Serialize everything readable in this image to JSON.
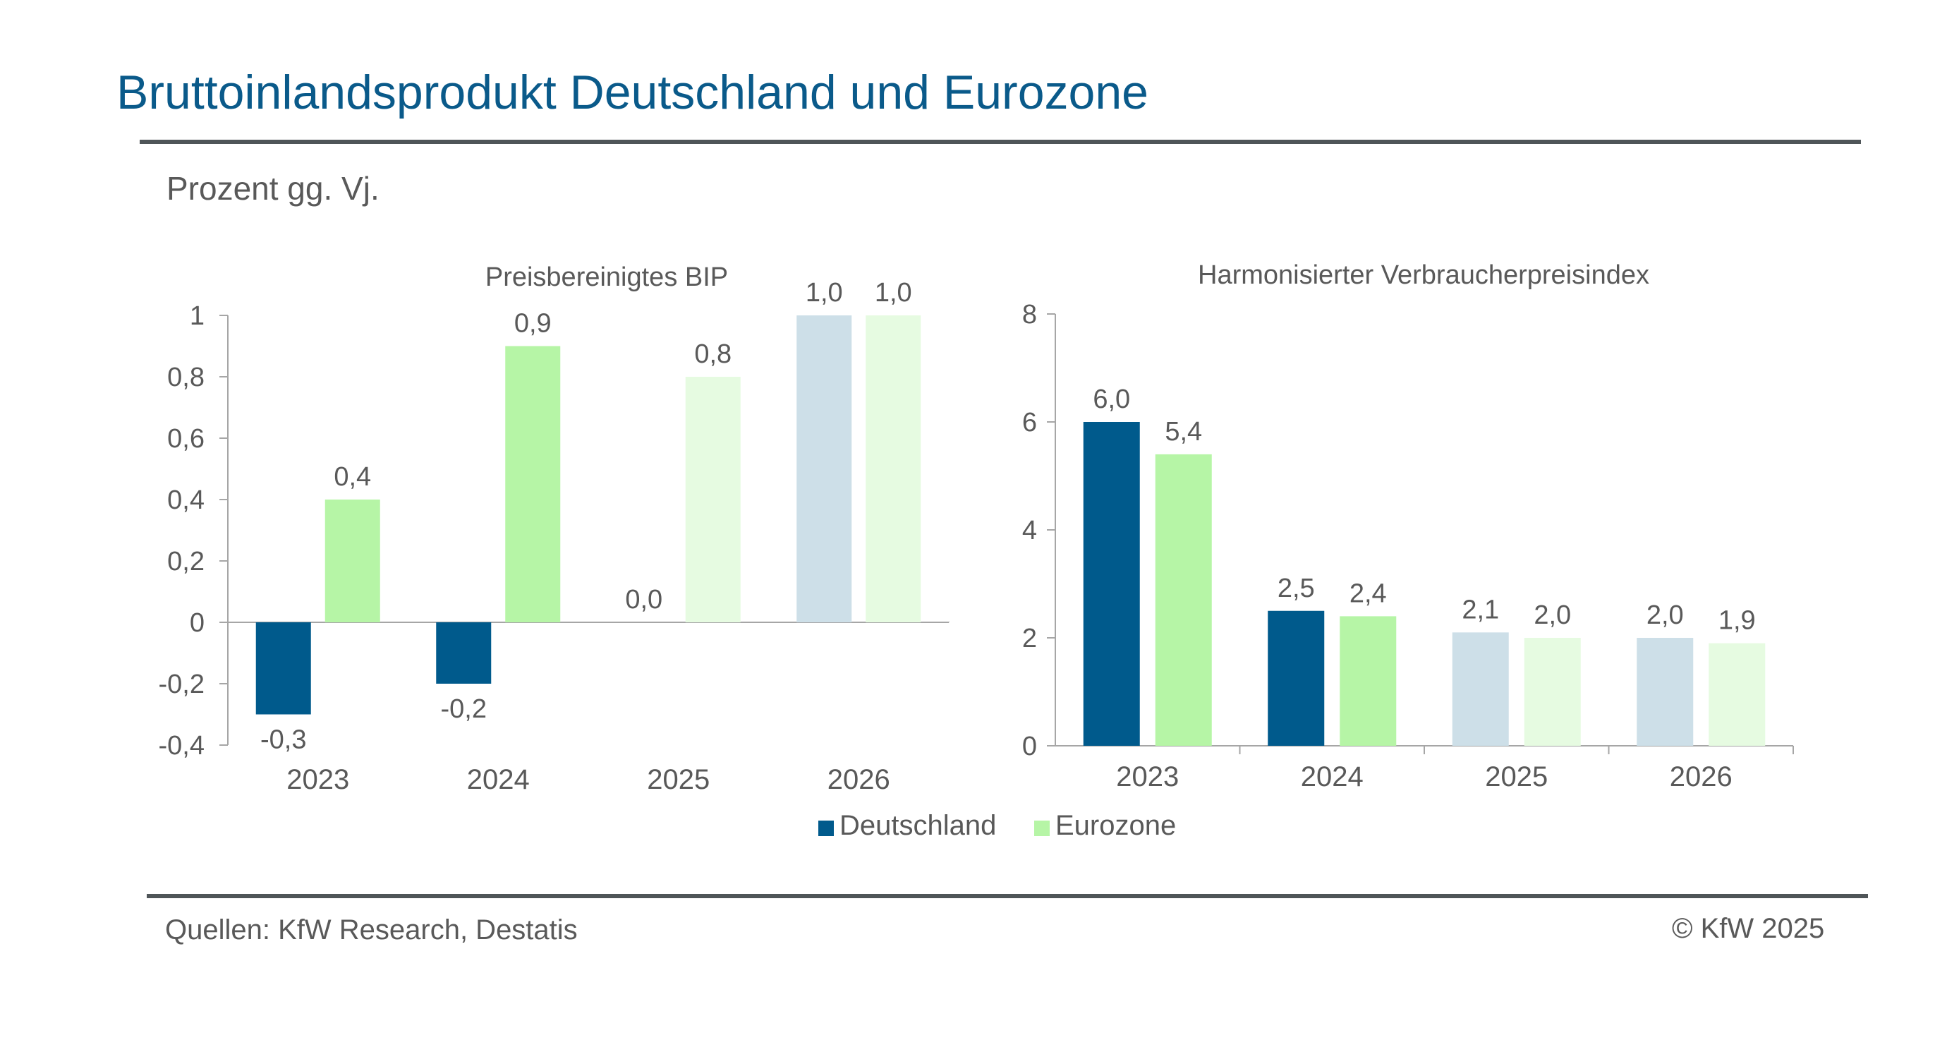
{
  "header": {
    "title": "Bruttoinlandsprodukt Deutschland und Eurozone",
    "subtitle": "Prozent gg. Vj."
  },
  "footer": {
    "source": "Quellen: KfW Research, Destatis",
    "copyright": "© KfW 2025"
  },
  "legend": {
    "placement": "bottom-center",
    "items": [
      {
        "label": "Deutschland",
        "color": "#005a8c"
      },
      {
        "label": "Eurozone",
        "color": "#b6f5a6"
      }
    ]
  },
  "colors": {
    "deutschland": "#005a8c",
    "eurozone": "#b6f5a6",
    "deutschland_forecast": "#cddfe8",
    "eurozone_forecast": "#e6fbe1",
    "title": "#0a5a8a",
    "text": "#595959"
  },
  "chart_data": [
    {
      "type": "bar",
      "title": "Preisbereinigtes BIP",
      "categories": [
        "2023",
        "2024",
        "2025",
        "2026"
      ],
      "forecast_from": "2025",
      "series": [
        {
          "name": "Deutschland",
          "values": [
            -0.3,
            -0.2,
            0.0,
            1.0
          ],
          "labels": [
            "-0,3",
            "-0,2",
            "0,0",
            "1,0"
          ]
        },
        {
          "name": "Eurozone",
          "values": [
            0.4,
            0.9,
            0.8,
            1.0
          ],
          "labels": [
            "0,4",
            "0,9",
            "0,8",
            "1,0"
          ]
        }
      ],
      "ylim": [
        -0.4,
        1
      ],
      "yticks": [
        -0.4,
        -0.2,
        0,
        0.2,
        0.4,
        0.6,
        0.8,
        1
      ],
      "ytick_labels": [
        "-0,4",
        "-0,2",
        "0",
        "0,2",
        "0,4",
        "0,6",
        "0,8",
        "1"
      ],
      "grid": false
    },
    {
      "type": "bar",
      "title": "Harmonisierter Verbraucherpreisindex",
      "categories": [
        "2023",
        "2024",
        "2025",
        "2026"
      ],
      "forecast_from": "2025",
      "series": [
        {
          "name": "Deutschland",
          "values": [
            6.0,
            2.5,
            2.1,
            2.0
          ],
          "labels": [
            "6,0",
            "2,5",
            "2,1",
            "2,0"
          ]
        },
        {
          "name": "Eurozone",
          "values": [
            5.4,
            2.4,
            2.0,
            1.9
          ],
          "labels": [
            "5,4",
            "2,4",
            "2,0",
            "1,9"
          ]
        }
      ],
      "ylim": [
        0,
        8
      ],
      "yticks": [
        0,
        2,
        4,
        6,
        8
      ],
      "ytick_labels": [
        "0",
        "2",
        "4",
        "6",
        "8"
      ],
      "grid": false
    }
  ]
}
